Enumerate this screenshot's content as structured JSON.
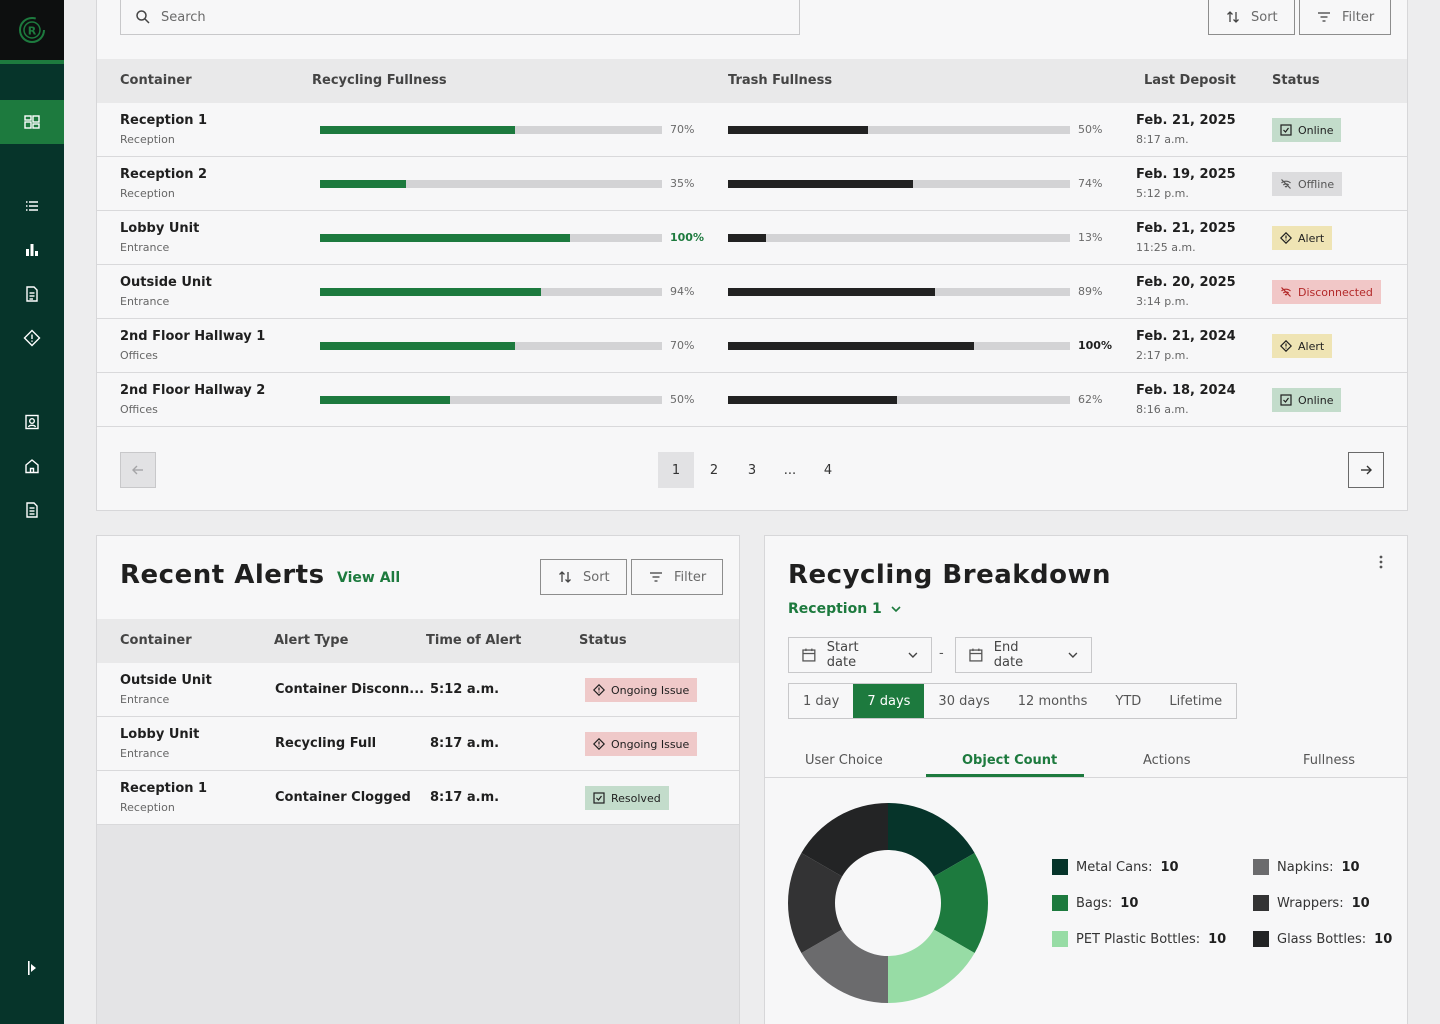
{
  "colors": {
    "accent": "#1d7a3e",
    "sidebar": "#06342a",
    "trash": "#222222"
  },
  "sidebar": {
    "logo_letter": "R",
    "items": [
      "dashboard-icon",
      "list-icon",
      "bar-chart-icon",
      "document-icon",
      "alert-diamond-icon",
      "contact-icon",
      "home-icon",
      "report-icon"
    ],
    "expand_icon": "sidebar-expand-icon"
  },
  "top": {
    "search_placeholder": "Search",
    "sort_label": "Sort",
    "filter_label": "Filter",
    "headers": {
      "container": "Container",
      "recycling": "Recycling Fullness",
      "trash": "Trash Fullness",
      "last": "Last Deposit",
      "status": "Status"
    },
    "rows": [
      {
        "name": "Reception 1",
        "sub": "Reception",
        "recycling": 0.57,
        "recycling_label": "70%",
        "trash": 0.41,
        "trash_label": "50%",
        "date": "Feb. 21, 2025",
        "time": "8:17 a.m.",
        "status": "Online",
        "kind": "online"
      },
      {
        "name": "Reception 2",
        "sub": "Reception",
        "recycling": 0.25,
        "recycling_label": "35%",
        "trash": 0.54,
        "trash_label": "74%",
        "date": "Feb. 19, 2025",
        "time": "5:12 p.m.",
        "status": "Offline",
        "kind": "offline"
      },
      {
        "name": "Lobby Unit",
        "sub": "Entrance",
        "recycling": 0.73,
        "recycling_label": "100%",
        "trash": 0.11,
        "trash_label": "13%",
        "date": "Feb. 21, 2025",
        "time": "11:25 a.m.",
        "status": "Alert",
        "kind": "alert"
      },
      {
        "name": "Outside Unit",
        "sub": "Entrance",
        "recycling": 0.645,
        "recycling_label": "94%",
        "trash": 0.605,
        "trash_label": "89%",
        "date": "Feb. 20, 2025",
        "time": "3:14 p.m.",
        "status": "Disconnected",
        "kind": "disc"
      },
      {
        "name": "2nd Floor Hallway 1",
        "sub": "Offices",
        "recycling": 0.57,
        "recycling_label": "70%",
        "trash": 0.72,
        "trash_label": "100%",
        "date": "Feb. 21, 2024",
        "time": "2:17 p.m.",
        "status": "Alert",
        "kind": "alert"
      },
      {
        "name": "2nd Floor Hallway 2",
        "sub": "Offices",
        "recycling": 0.38,
        "recycling_label": "50%",
        "trash": 0.495,
        "trash_label": "62%",
        "date": "Feb. 18, 2024",
        "time": "8:16 a.m.",
        "status": "Online",
        "kind": "online"
      }
    ],
    "pagination": [
      "1",
      "2",
      "3",
      "...",
      "4"
    ]
  },
  "alerts": {
    "title": "Recent Alerts",
    "view_all": "View All",
    "sort_label": "Sort",
    "filter_label": "Filter",
    "headers": {
      "container": "Container",
      "type": "Alert Type",
      "time": "Time of Alert",
      "status": "Status"
    },
    "rows": [
      {
        "name": "Outside Unit",
        "sub": "Entrance",
        "type": "Container Disconn...",
        "time": "5:12 a.m.",
        "status": "Ongoing Issue",
        "kind": "ongoing"
      },
      {
        "name": "Lobby Unit",
        "sub": "Entrance",
        "type": "Recycling Full",
        "time": "8:17 a.m.",
        "status": "Ongoing Issue",
        "kind": "ongoing"
      },
      {
        "name": "Reception 1",
        "sub": "Reception",
        "type": "Container Clogged",
        "time": "8:17 a.m.",
        "status": "Resolved",
        "kind": "resolved"
      }
    ]
  },
  "breakdown": {
    "title": "Recycling Breakdown",
    "location": "Reception 1",
    "start_date": "Start date",
    "end_date": "End date",
    "date_sep": "-",
    "ranges": [
      "1 day",
      "7 days",
      "30 days",
      "12 months",
      "YTD",
      "Lifetime"
    ],
    "active_range": "7 days",
    "tabs": [
      "User Choice",
      "Object Count",
      "Actions",
      "Fullness"
    ],
    "active_tab": "Object Count",
    "legend": [
      {
        "label": "Metal Cans:",
        "value": "10",
        "color": "#06342a"
      },
      {
        "label": "Bags:",
        "value": "10",
        "color": "#1d7a3e"
      },
      {
        "label": "PET Plastic Bottles:",
        "value": "10",
        "color": "#97dca5"
      },
      {
        "label": "Napkins:",
        "value": "10",
        "color": "#6b6b6d"
      },
      {
        "label": "Wrappers:",
        "value": "10",
        "color": "#333334"
      },
      {
        "label": "Glass Bottles:",
        "value": "10",
        "color": "#232425"
      }
    ]
  },
  "chart_data": {
    "type": "pie",
    "categories": [
      "Metal Cans",
      "Bags",
      "PET Plastic Bottles",
      "Napkins",
      "Wrappers",
      "Glass Bottles"
    ],
    "values": [
      10,
      10,
      10,
      10,
      10,
      10
    ]
  }
}
